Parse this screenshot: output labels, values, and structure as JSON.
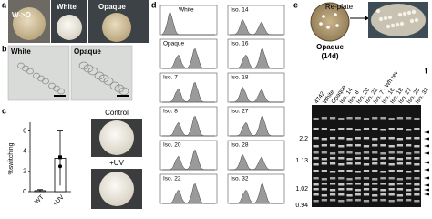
{
  "panel_labels": [
    "a",
    "b",
    "c",
    "d",
    "e",
    "f"
  ],
  "a": {
    "images": [
      "W->O",
      "White",
      "Opaque"
    ]
  },
  "b": {
    "images": [
      "White",
      "Opaque"
    ]
  },
  "c": {
    "y_label": "%switching",
    "categories": [
      "WT",
      "+UV"
    ],
    "values": [
      0.1,
      3.3
    ],
    "errors": [
      0.1,
      2.7
    ],
    "ylim": [
      0,
      6.5
    ],
    "yticks": [
      0,
      2,
      4,
      6
    ],
    "photo_labels": [
      "Control",
      "+UV"
    ]
  },
  "d": {
    "left": [
      "White",
      "Opaque",
      "Iso. 7",
      "Iso. 8",
      "Iso. 20",
      "Iso. 22"
    ],
    "right": [
      "Iso. 14",
      "Iso. 16",
      "Iso. 18",
      "Iso. 27",
      "Iso. 28",
      "Iso. 32"
    ]
  },
  "e": {
    "colony": "Opaque",
    "age": "(14d)",
    "arrow": "Re-plate"
  },
  "f": {
    "lanes": [
      "4742",
      "White",
      "Opaque",
      "Iso. 14",
      "Iso. 8",
      "Iso. 20",
      "Iso. 22",
      "Iso. 7 - Wh rev",
      "Iso. 16",
      "Iso. 18",
      "Iso. 27",
      "Iso. 28",
      "Iso. 32"
    ],
    "markers": [
      "2.2",
      "1.13",
      "1.02",
      "0.94"
    ]
  }
}
